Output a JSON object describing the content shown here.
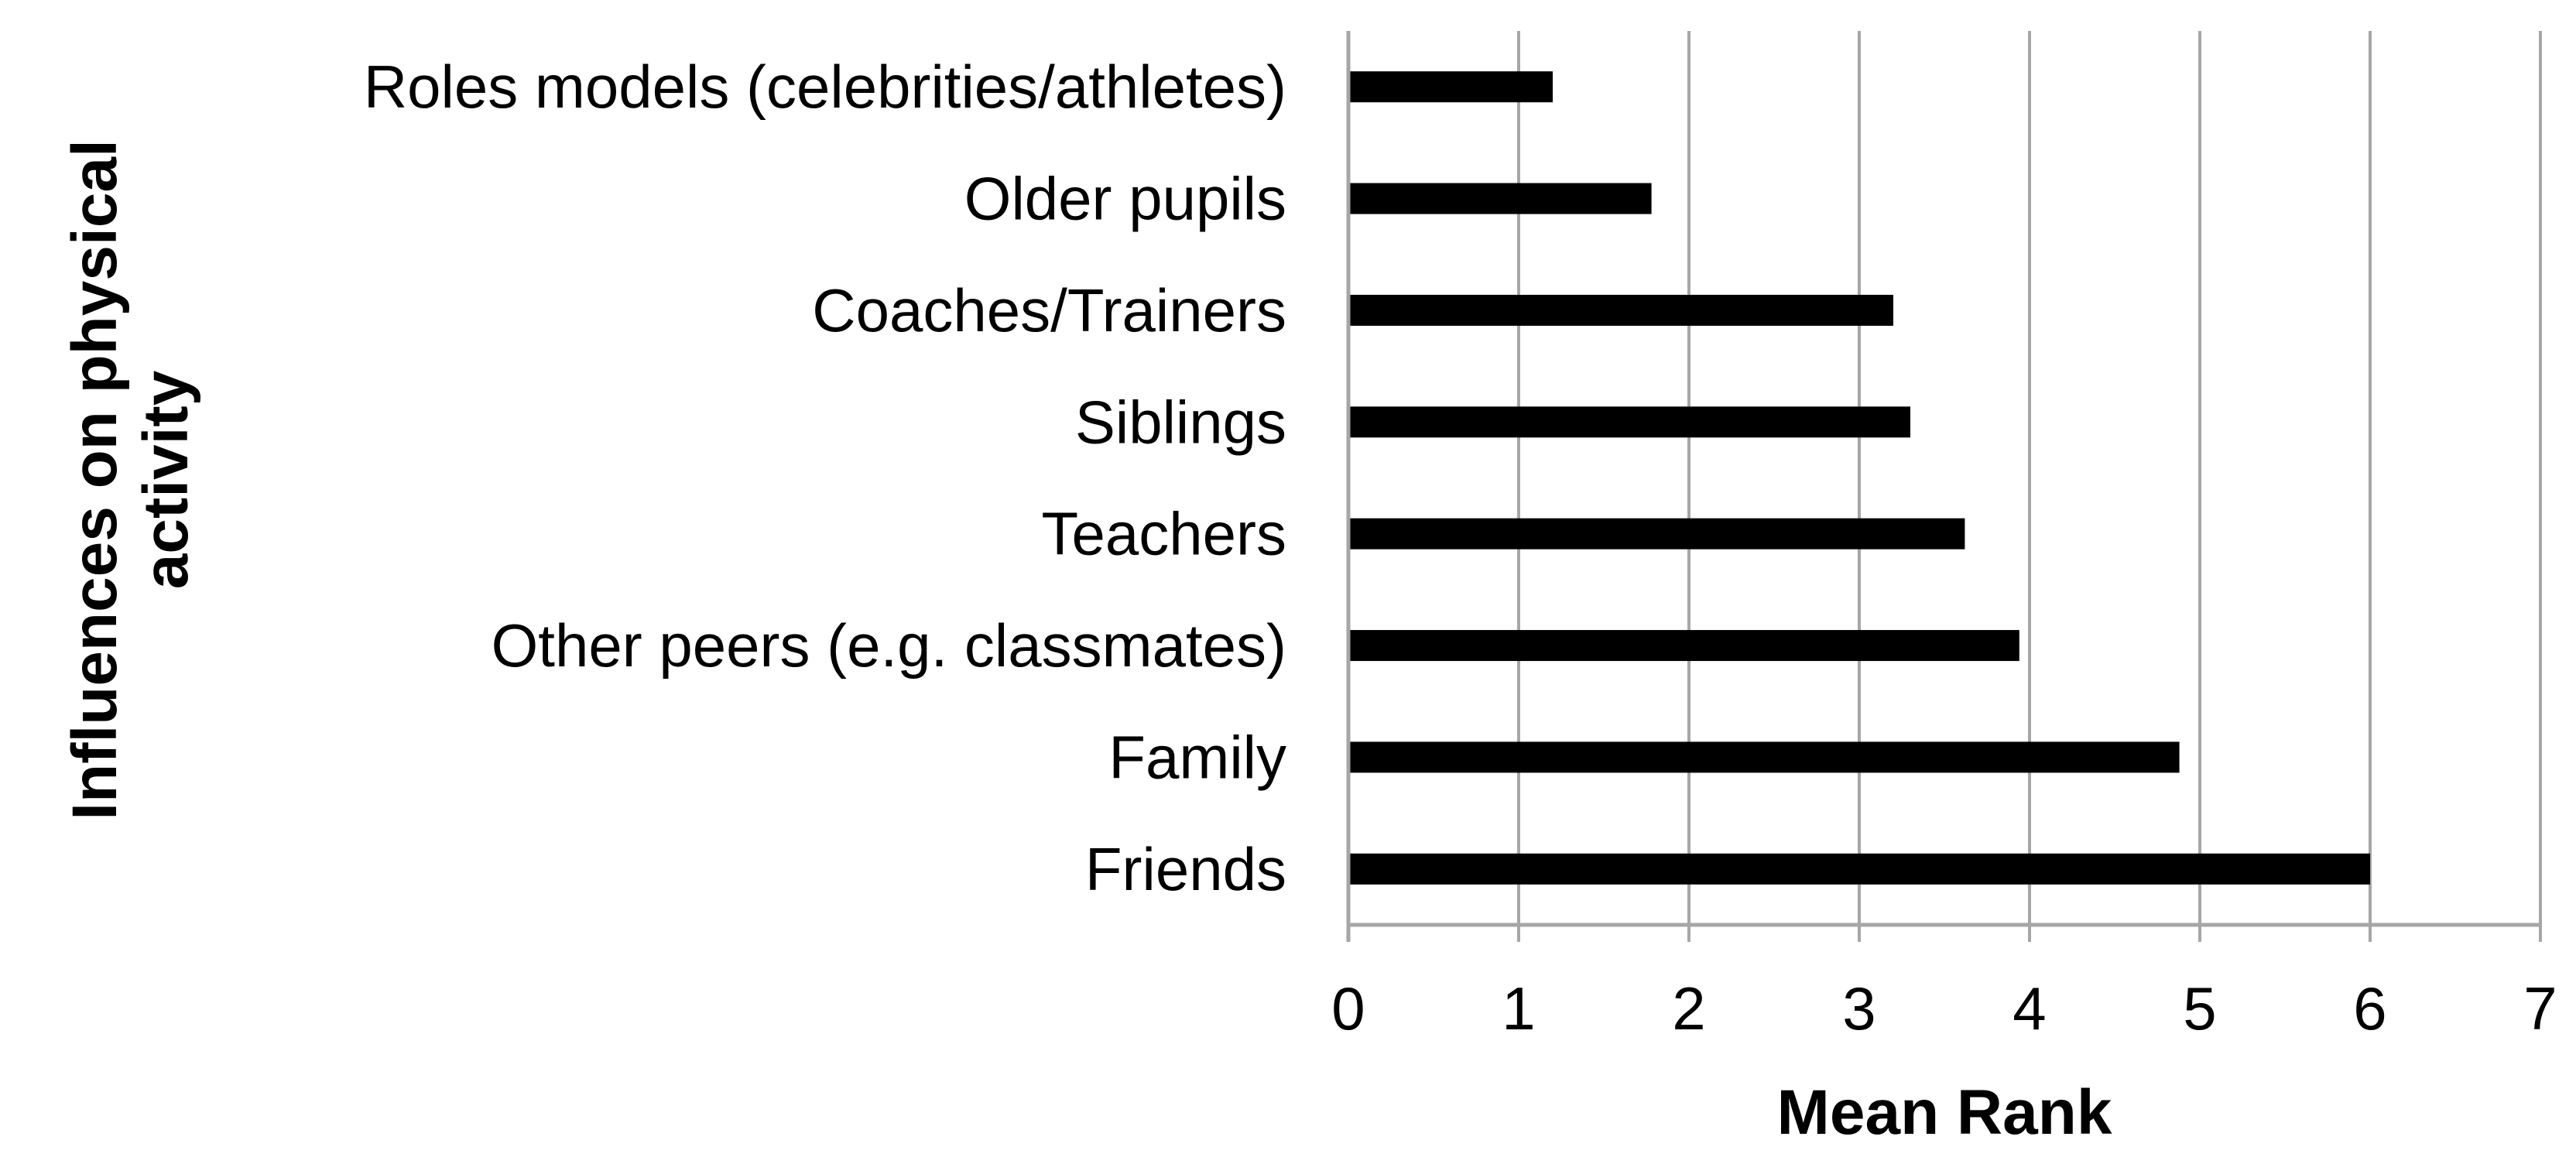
{
  "chart_data": {
    "type": "bar",
    "orientation": "horizontal",
    "categories": [
      "Roles models (celebrities/athletes)",
      "Older pupils",
      "Coaches/Trainers",
      "Siblings",
      "Teachers",
      "Other peers (e.g. classmates)",
      "Family",
      "Friends"
    ],
    "values": [
      1.2,
      1.78,
      3.2,
      3.3,
      3.62,
      3.94,
      4.88,
      6.0
    ],
    "xlabel": "Mean Rank",
    "ylabel": "Influences on physical activity",
    "xlim": [
      0,
      7
    ],
    "xticks": [
      "0",
      "1",
      "2",
      "3",
      "4",
      "5",
      "6",
      "7"
    ],
    "grid": "vertical",
    "legend": "none",
    "colors": {
      "bar": "#000000",
      "grid": "#a6a6a6",
      "axis": "#a6a6a6",
      "text": "#000000"
    }
  }
}
